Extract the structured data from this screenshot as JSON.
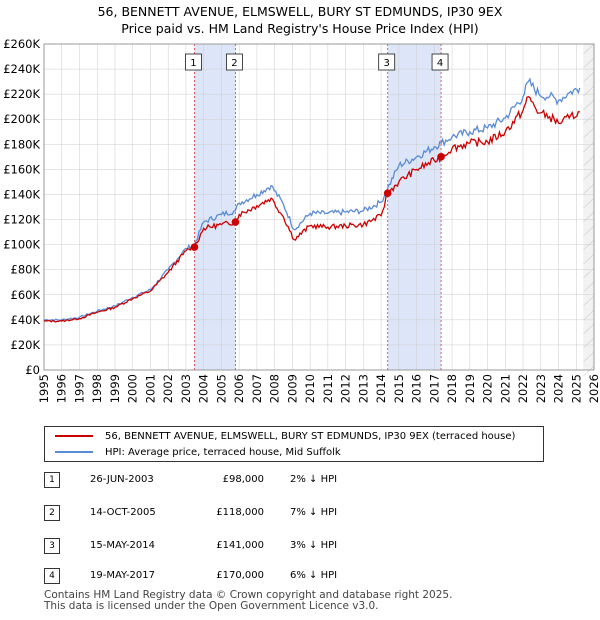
{
  "colors": {
    "price_line": "#cc0000",
    "hpi_line": "#5a8bd6",
    "shade": "#dde6f8",
    "grid": "#cccccc",
    "vline": "#e05050"
  },
  "title": {
    "line1": "56, BENNETT AVENUE, ELMSWELL, BURY ST EDMUNDS, IP30 9EX",
    "line2": "Price paid vs. HM Land Registry's House Price Index (HPI)"
  },
  "legend": {
    "price_label": "56, BENNETT AVENUE, ELMSWELL, BURY ST EDMUNDS, IP30 9EX (terraced house)",
    "hpi_label": "HPI: Average price, terraced house, Mid Suffolk"
  },
  "sales": [
    {
      "num": "1",
      "date": "26-JUN-2003",
      "price": "£98,000",
      "hpi": "2% ↓ HPI"
    },
    {
      "num": "2",
      "date": "14-OCT-2005",
      "price": "£118,000",
      "hpi": "7% ↓ HPI"
    },
    {
      "num": "3",
      "date": "15-MAY-2014",
      "price": "£141,000",
      "hpi": "3% ↓ HPI"
    },
    {
      "num": "4",
      "date": "19-MAY-2017",
      "price": "£170,000",
      "hpi": "6% ↓ HPI"
    }
  ],
  "footer": {
    "line1": "Contains HM Land Registry data © Crown copyright and database right 2025.",
    "line2": "This data is licensed under the Open Government Licence v3.0."
  },
  "chart_data": {
    "type": "line",
    "title": "Price paid vs. HM Land Registry's House Price Index (HPI)",
    "xlim": [
      1995,
      2026
    ],
    "ylim": [
      0,
      260000
    ],
    "x_ticks": [
      1995,
      1996,
      1997,
      1998,
      1999,
      2000,
      2001,
      2002,
      2003,
      2004,
      2005,
      2006,
      2007,
      2008,
      2009,
      2010,
      2011,
      2012,
      2013,
      2014,
      2015,
      2016,
      2017,
      2018,
      2019,
      2020,
      2021,
      2022,
      2023,
      2024,
      2025,
      2026
    ],
    "y_ticks": [
      0,
      20000,
      40000,
      60000,
      80000,
      100000,
      120000,
      140000,
      160000,
      180000,
      200000,
      220000,
      240000,
      260000
    ],
    "y_tick_labels": [
      "£0",
      "£20K",
      "£40K",
      "£60K",
      "£80K",
      "£100K",
      "£120K",
      "£140K",
      "£160K",
      "£180K",
      "£200K",
      "£220K",
      "£240K",
      "£260K"
    ],
    "shaded_ranges": [
      [
        2003.48,
        2005.79
      ],
      [
        2014.37,
        2017.38
      ]
    ],
    "sale_markers": [
      {
        "label": "1",
        "x": 2003.48,
        "y": 98000
      },
      {
        "label": "2",
        "x": 2005.79,
        "y": 118000
      },
      {
        "label": "3",
        "x": 2014.37,
        "y": 141000
      },
      {
        "label": "4",
        "x": 2017.38,
        "y": 170000
      }
    ],
    "series": [
      {
        "name": "HPI: Average price, terraced house, Mid Suffolk",
        "x": [
          1995,
          1996,
          1997,
          1998,
          1999,
          2000,
          2001,
          2002,
          2003,
          2003.48,
          2004,
          2005,
          2005.79,
          2006,
          2007,
          2007.8,
          2008.5,
          2009.1,
          2010,
          2011,
          2012,
          2013,
          2014,
          2014.37,
          2015,
          2016,
          2017,
          2017.38,
          2018,
          2019,
          2020,
          2021,
          2022,
          2022.3,
          2022.9,
          2023.5,
          2024,
          2024.6,
          2025.2
        ],
        "y": [
          40000,
          40000,
          42000,
          47000,
          51000,
          58000,
          64000,
          80000,
          97000,
          100000,
          118000,
          124000,
          127000,
          133000,
          140000,
          147000,
          132000,
          112000,
          125000,
          125000,
          126000,
          127000,
          134000,
          145000,
          163000,
          170000,
          178000,
          181000,
          186000,
          190000,
          193000,
          201000,
          218000,
          230000,
          220000,
          218000,
          215000,
          221000,
          225000
        ]
      },
      {
        "name": "56, BENNETT AVENUE, ELMSWELL, BURY ST EDMUNDS, IP30 9EX (terraced house)",
        "x": [
          1995,
          1996,
          1997,
          1998,
          1999,
          2000,
          2001,
          2002,
          2003,
          2003.48,
          2004,
          2005,
          2005.79,
          2006,
          2007,
          2007.8,
          2008.5,
          2009.1,
          2010,
          2011,
          2012,
          2013,
          2014,
          2014.37,
          2015,
          2016,
          2017,
          2017.38,
          2018,
          2019,
          2020,
          2021,
          2022,
          2022.3,
          2022.9,
          2023.5,
          2024,
          2024.6,
          2025.2
        ],
        "y": [
          39000,
          39000,
          41000,
          46000,
          50000,
          57000,
          63000,
          78000,
          95000,
          98000,
          113000,
          116000,
          118000,
          124000,
          131000,
          137000,
          122000,
          104000,
          115000,
          114000,
          115000,
          116000,
          123000,
          141000,
          150000,
          160000,
          167000,
          170000,
          177000,
          181000,
          182000,
          190000,
          207000,
          218000,
          205000,
          202000,
          197000,
          201000,
          206000
        ]
      }
    ]
  }
}
